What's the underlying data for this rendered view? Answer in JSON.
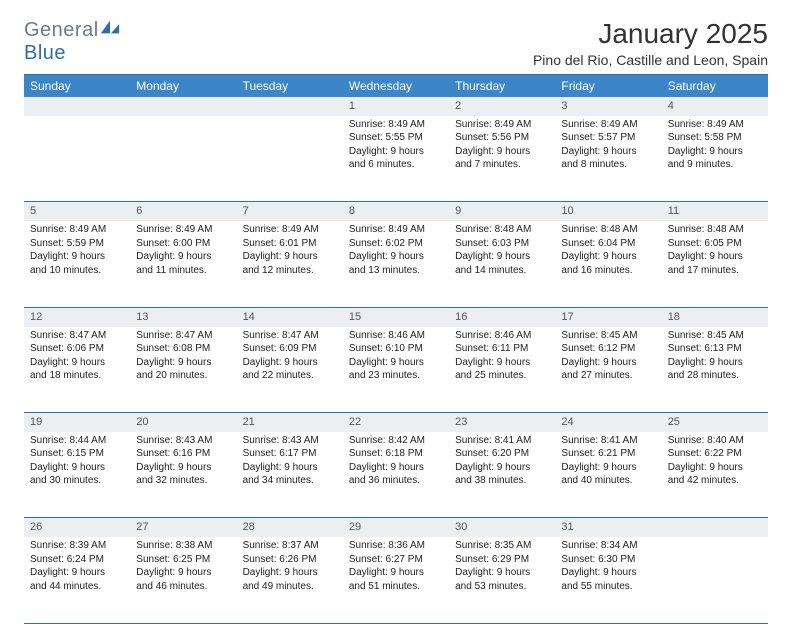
{
  "logo": {
    "general": "General",
    "blue": "Blue"
  },
  "colors": {
    "header_bg": "#3c85c6",
    "border": "#2f6fa8",
    "daynum_bg": "#eceff1",
    "logo_gray": "#6b7d8a",
    "logo_blue": "#2f6fa8"
  },
  "title": "January 2025",
  "location": "Pino del Rio, Castille and Leon, Spain",
  "weekdays": [
    "Sunday",
    "Monday",
    "Tuesday",
    "Wednesday",
    "Thursday",
    "Friday",
    "Saturday"
  ],
  "weeks": [
    {
      "nums": [
        "",
        "",
        "",
        "1",
        "2",
        "3",
        "4"
      ],
      "cells": [
        null,
        null,
        null,
        {
          "sunrise": "Sunrise: 8:49 AM",
          "sunset": "Sunset: 5:55 PM",
          "day1": "Daylight: 9 hours",
          "day2": "and 6 minutes."
        },
        {
          "sunrise": "Sunrise: 8:49 AM",
          "sunset": "Sunset: 5:56 PM",
          "day1": "Daylight: 9 hours",
          "day2": "and 7 minutes."
        },
        {
          "sunrise": "Sunrise: 8:49 AM",
          "sunset": "Sunset: 5:57 PM",
          "day1": "Daylight: 9 hours",
          "day2": "and 8 minutes."
        },
        {
          "sunrise": "Sunrise: 8:49 AM",
          "sunset": "Sunset: 5:58 PM",
          "day1": "Daylight: 9 hours",
          "day2": "and 9 minutes."
        }
      ]
    },
    {
      "nums": [
        "5",
        "6",
        "7",
        "8",
        "9",
        "10",
        "11"
      ],
      "cells": [
        {
          "sunrise": "Sunrise: 8:49 AM",
          "sunset": "Sunset: 5:59 PM",
          "day1": "Daylight: 9 hours",
          "day2": "and 10 minutes."
        },
        {
          "sunrise": "Sunrise: 8:49 AM",
          "sunset": "Sunset: 6:00 PM",
          "day1": "Daylight: 9 hours",
          "day2": "and 11 minutes."
        },
        {
          "sunrise": "Sunrise: 8:49 AM",
          "sunset": "Sunset: 6:01 PM",
          "day1": "Daylight: 9 hours",
          "day2": "and 12 minutes."
        },
        {
          "sunrise": "Sunrise: 8:49 AM",
          "sunset": "Sunset: 6:02 PM",
          "day1": "Daylight: 9 hours",
          "day2": "and 13 minutes."
        },
        {
          "sunrise": "Sunrise: 8:48 AM",
          "sunset": "Sunset: 6:03 PM",
          "day1": "Daylight: 9 hours",
          "day2": "and 14 minutes."
        },
        {
          "sunrise": "Sunrise: 8:48 AM",
          "sunset": "Sunset: 6:04 PM",
          "day1": "Daylight: 9 hours",
          "day2": "and 16 minutes."
        },
        {
          "sunrise": "Sunrise: 8:48 AM",
          "sunset": "Sunset: 6:05 PM",
          "day1": "Daylight: 9 hours",
          "day2": "and 17 minutes."
        }
      ]
    },
    {
      "nums": [
        "12",
        "13",
        "14",
        "15",
        "16",
        "17",
        "18"
      ],
      "cells": [
        {
          "sunrise": "Sunrise: 8:47 AM",
          "sunset": "Sunset: 6:06 PM",
          "day1": "Daylight: 9 hours",
          "day2": "and 18 minutes."
        },
        {
          "sunrise": "Sunrise: 8:47 AM",
          "sunset": "Sunset: 6:08 PM",
          "day1": "Daylight: 9 hours",
          "day2": "and 20 minutes."
        },
        {
          "sunrise": "Sunrise: 8:47 AM",
          "sunset": "Sunset: 6:09 PM",
          "day1": "Daylight: 9 hours",
          "day2": "and 22 minutes."
        },
        {
          "sunrise": "Sunrise: 8:46 AM",
          "sunset": "Sunset: 6:10 PM",
          "day1": "Daylight: 9 hours",
          "day2": "and 23 minutes."
        },
        {
          "sunrise": "Sunrise: 8:46 AM",
          "sunset": "Sunset: 6:11 PM",
          "day1": "Daylight: 9 hours",
          "day2": "and 25 minutes."
        },
        {
          "sunrise": "Sunrise: 8:45 AM",
          "sunset": "Sunset: 6:12 PM",
          "day1": "Daylight: 9 hours",
          "day2": "and 27 minutes."
        },
        {
          "sunrise": "Sunrise: 8:45 AM",
          "sunset": "Sunset: 6:13 PM",
          "day1": "Daylight: 9 hours",
          "day2": "and 28 minutes."
        }
      ]
    },
    {
      "nums": [
        "19",
        "20",
        "21",
        "22",
        "23",
        "24",
        "25"
      ],
      "cells": [
        {
          "sunrise": "Sunrise: 8:44 AM",
          "sunset": "Sunset: 6:15 PM",
          "day1": "Daylight: 9 hours",
          "day2": "and 30 minutes."
        },
        {
          "sunrise": "Sunrise: 8:43 AM",
          "sunset": "Sunset: 6:16 PM",
          "day1": "Daylight: 9 hours",
          "day2": "and 32 minutes."
        },
        {
          "sunrise": "Sunrise: 8:43 AM",
          "sunset": "Sunset: 6:17 PM",
          "day1": "Daylight: 9 hours",
          "day2": "and 34 minutes."
        },
        {
          "sunrise": "Sunrise: 8:42 AM",
          "sunset": "Sunset: 6:18 PM",
          "day1": "Daylight: 9 hours",
          "day2": "and 36 minutes."
        },
        {
          "sunrise": "Sunrise: 8:41 AM",
          "sunset": "Sunset: 6:20 PM",
          "day1": "Daylight: 9 hours",
          "day2": "and 38 minutes."
        },
        {
          "sunrise": "Sunrise: 8:41 AM",
          "sunset": "Sunset: 6:21 PM",
          "day1": "Daylight: 9 hours",
          "day2": "and 40 minutes."
        },
        {
          "sunrise": "Sunrise: 8:40 AM",
          "sunset": "Sunset: 6:22 PM",
          "day1": "Daylight: 9 hours",
          "day2": "and 42 minutes."
        }
      ]
    },
    {
      "nums": [
        "26",
        "27",
        "28",
        "29",
        "30",
        "31",
        ""
      ],
      "cells": [
        {
          "sunrise": "Sunrise: 8:39 AM",
          "sunset": "Sunset: 6:24 PM",
          "day1": "Daylight: 9 hours",
          "day2": "and 44 minutes."
        },
        {
          "sunrise": "Sunrise: 8:38 AM",
          "sunset": "Sunset: 6:25 PM",
          "day1": "Daylight: 9 hours",
          "day2": "and 46 minutes."
        },
        {
          "sunrise": "Sunrise: 8:37 AM",
          "sunset": "Sunset: 6:26 PM",
          "day1": "Daylight: 9 hours",
          "day2": "and 49 minutes."
        },
        {
          "sunrise": "Sunrise: 8:36 AM",
          "sunset": "Sunset: 6:27 PM",
          "day1": "Daylight: 9 hours",
          "day2": "and 51 minutes."
        },
        {
          "sunrise": "Sunrise: 8:35 AM",
          "sunset": "Sunset: 6:29 PM",
          "day1": "Daylight: 9 hours",
          "day2": "and 53 minutes."
        },
        {
          "sunrise": "Sunrise: 8:34 AM",
          "sunset": "Sunset: 6:30 PM",
          "day1": "Daylight: 9 hours",
          "day2": "and 55 minutes."
        },
        null
      ]
    }
  ]
}
